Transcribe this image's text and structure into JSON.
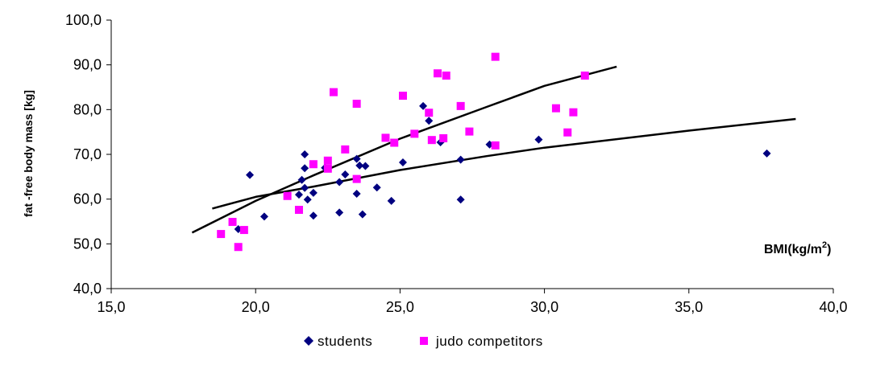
{
  "chart_data": {
    "type": "scatter",
    "ylabel": "fat -free body mass [kg]",
    "xlabel_main": "BMI(kg/m",
    "xlabel_sup": "2",
    "xlabel_end": ")",
    "xlim": [
      15,
      40
    ],
    "ylim": [
      40,
      100
    ],
    "x_ticks": [
      "15,0",
      "20,0",
      "25,0",
      "30,0",
      "35,0",
      "40,0"
    ],
    "y_ticks": [
      "40,0",
      "50,0",
      "60,0",
      "70,0",
      "80,0",
      "90,0",
      "100,0"
    ],
    "grid": false,
    "legend_position": "bottom",
    "series": [
      {
        "name": "students",
        "color": "#000080",
        "marker": "diamond",
        "points": [
          [
            19.8,
            65.4
          ],
          [
            19.4,
            53.3
          ],
          [
            20.3,
            56.1
          ],
          [
            21.5,
            61.0
          ],
          [
            21.6,
            64.3
          ],
          [
            21.7,
            70.0
          ],
          [
            21.7,
            66.9
          ],
          [
            21.7,
            62.5
          ],
          [
            21.8,
            59.9
          ],
          [
            22.0,
            61.4
          ],
          [
            22.0,
            56.3
          ],
          [
            22.4,
            67.0
          ],
          [
            22.9,
            63.8
          ],
          [
            22.9,
            57.0
          ],
          [
            23.1,
            65.5
          ],
          [
            23.5,
            69.0
          ],
          [
            23.5,
            61.2
          ],
          [
            23.6,
            67.5
          ],
          [
            23.8,
            67.4
          ],
          [
            23.7,
            56.6
          ],
          [
            24.2,
            62.6
          ],
          [
            24.7,
            59.6
          ],
          [
            25.1,
            68.2
          ],
          [
            25.8,
            80.8
          ],
          [
            26.0,
            77.5
          ],
          [
            26.4,
            72.7
          ],
          [
            27.1,
            68.8
          ],
          [
            27.1,
            59.9
          ],
          [
            28.1,
            72.2
          ],
          [
            29.8,
            73.3
          ],
          [
            37.7,
            70.2
          ]
        ]
      },
      {
        "name": "judo competitors",
        "color": "#ff00ff",
        "marker": "square",
        "points": [
          [
            18.8,
            52.2
          ],
          [
            19.2,
            54.9
          ],
          [
            19.4,
            49.3
          ],
          [
            19.6,
            53.1
          ],
          [
            21.1,
            60.7
          ],
          [
            21.5,
            57.6
          ],
          [
            22.0,
            67.8
          ],
          [
            22.5,
            68.6
          ],
          [
            22.5,
            66.8
          ],
          [
            22.7,
            83.9
          ],
          [
            23.1,
            71.1
          ],
          [
            23.5,
            81.3
          ],
          [
            23.5,
            64.5
          ],
          [
            24.5,
            73.7
          ],
          [
            24.8,
            72.6
          ],
          [
            25.1,
            83.1
          ],
          [
            25.5,
            74.6
          ],
          [
            26.0,
            79.3
          ],
          [
            26.1,
            73.2
          ],
          [
            26.3,
            88.1
          ],
          [
            26.5,
            73.6
          ],
          [
            26.6,
            87.6
          ],
          [
            27.1,
            80.8
          ],
          [
            27.4,
            75.1
          ],
          [
            28.3,
            91.8
          ],
          [
            28.3,
            72.0
          ],
          [
            30.4,
            80.3
          ],
          [
            30.8,
            74.9
          ],
          [
            31.0,
            79.4
          ],
          [
            31.4,
            87.6
          ]
        ]
      }
    ],
    "trendlines": [
      {
        "series": "judo competitors",
        "x_range": [
          17.8,
          32.5
        ],
        "points": [
          [
            17.8,
            52.5
          ],
          [
            20.0,
            59.6
          ],
          [
            22.0,
            65.3
          ],
          [
            25.0,
            73.5
          ],
          [
            28.0,
            80.6
          ],
          [
            30.0,
            85.3
          ],
          [
            32.5,
            89.6
          ]
        ]
      },
      {
        "series": "students",
        "x_range": [
          18.5,
          38.7
        ],
        "points": [
          [
            18.5,
            57.9
          ],
          [
            20.0,
            60.5
          ],
          [
            22.0,
            62.8
          ],
          [
            25.0,
            66.5
          ],
          [
            28.0,
            69.6
          ],
          [
            30.0,
            71.5
          ],
          [
            35.0,
            75.3
          ],
          [
            38.7,
            77.9
          ]
        ]
      }
    ]
  }
}
